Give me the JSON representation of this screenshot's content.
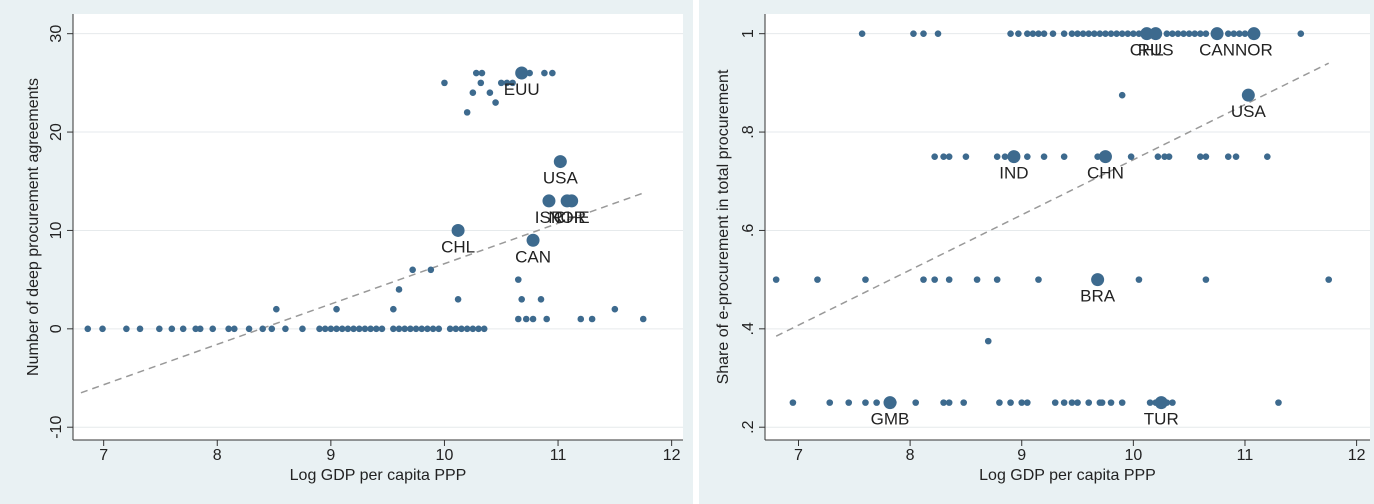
{
  "chart_data": [
    {
      "type": "scatter",
      "xlabel": "Log GDP per capita PPP",
      "ylabel": "Number of deep procurement agreements",
      "xlim": [
        6.73,
        12.1
      ],
      "ylim": [
        -11.3,
        32
      ],
      "xticks": [
        7,
        8,
        9,
        10,
        11,
        12
      ],
      "yticks": [
        -10,
        0,
        10,
        20,
        30
      ],
      "grid": true,
      "color": "#3d6a8e",
      "label_color": "#6b1d5c",
      "points": {
        "x": [
          6.86,
          6.99,
          7.2,
          7.32,
          7.49,
          7.6,
          7.7,
          7.81,
          7.85,
          7.96,
          8.1,
          8.15,
          8.28,
          8.4,
          8.48,
          8.6,
          8.75,
          8.9,
          8.95,
          9.0,
          9.05,
          9.1,
          9.15,
          9.2,
          9.25,
          9.3,
          9.35,
          9.4,
          9.45,
          9.55,
          9.6,
          9.65,
          9.7,
          9.75,
          9.8,
          9.85,
          9.9,
          9.95,
          10.05,
          10.1,
          10.15,
          10.2,
          10.25,
          10.3,
          10.35,
          8.52,
          9.05,
          9.55,
          9.6,
          9.72,
          9.88,
          10.12,
          10.0,
          10.2,
          10.25,
          10.28,
          10.33,
          10.32,
          10.4,
          10.45,
          10.5,
          10.55,
          10.6,
          10.75,
          10.88,
          10.95,
          10.65,
          10.68,
          10.65,
          10.72,
          10.78,
          10.85,
          10.9,
          11.2,
          11.3,
          11.5,
          11.75
        ],
        "y": [
          0,
          0,
          0,
          0,
          0,
          0,
          0,
          0,
          0,
          0,
          0,
          0,
          0,
          0,
          0,
          0,
          0,
          0,
          0,
          0,
          0,
          0,
          0,
          0,
          0,
          0,
          0,
          0,
          0,
          0,
          0,
          0,
          0,
          0,
          0,
          0,
          0,
          0,
          0,
          0,
          0,
          0,
          0,
          0,
          0,
          2,
          2,
          2,
          4,
          6,
          6,
          3,
          25,
          22,
          24,
          26,
          26,
          25,
          24,
          23,
          25,
          25,
          25,
          26,
          26,
          26,
          5,
          3,
          1,
          1,
          1,
          3,
          1,
          1,
          1,
          2,
          1
        ]
      },
      "labeled_points": {
        "x": [
          10.68,
          11.02,
          10.12,
          10.78,
          10.92,
          11.08,
          11.12
        ],
        "y": [
          26,
          17,
          10,
          9,
          13,
          13,
          13
        ],
        "labels": [
          "EUU",
          "USA",
          "CHL",
          "CAN",
          "ISR",
          "NOR",
          "CHE"
        ]
      },
      "fit_line": {
        "x": [
          6.8,
          11.75
        ],
        "y": [
          -6.5,
          13.8
        ]
      }
    },
    {
      "type": "scatter",
      "xlabel": "Log GDP per capita PPP",
      "ylabel": "Share of e-procurement in total procurement",
      "xlim": [
        6.7,
        12.12
      ],
      "ylim": [
        0.174,
        1.04
      ],
      "xticks": [
        7,
        8,
        9,
        10,
        11,
        12
      ],
      "yticks": [
        {
          "value": 0.2,
          "label": ".2"
        },
        {
          "value": 0.4,
          "label": ".4"
        },
        {
          "value": 0.6,
          "label": ".6"
        },
        {
          "value": 0.8,
          "label": ".8"
        },
        1
      ],
      "grid": true,
      "color": "#3d6a8e",
      "label_color": "#6b1d5c",
      "points": {
        "x": [
          7.57,
          8.03,
          8.12,
          8.25,
          8.9,
          8.97,
          9.05,
          9.1,
          9.15,
          9.2,
          9.28,
          9.38,
          9.45,
          9.5,
          9.55,
          9.6,
          9.65,
          9.7,
          9.75,
          9.8,
          9.85,
          9.9,
          9.95,
          10.0,
          10.05,
          10.3,
          10.35,
          10.4,
          10.45,
          10.5,
          10.55,
          10.6,
          10.65,
          10.85,
          10.9,
          10.95,
          11.0,
          11.5,
          9.9,
          8.22,
          8.3,
          8.35,
          8.5,
          8.78,
          8.85,
          9.05,
          9.2,
          9.38,
          9.68,
          9.98,
          10.22,
          10.28,
          10.32,
          10.6,
          10.65,
          10.85,
          10.92,
          11.2,
          6.8,
          7.17,
          7.6,
          8.12,
          8.22,
          8.35,
          8.6,
          8.78,
          9.15,
          10.05,
          10.65,
          11.75,
          8.7,
          6.95,
          7.28,
          7.45,
          7.6,
          7.7,
          7.85,
          8.05,
          8.3,
          8.35,
          8.48,
          8.8,
          8.9,
          9.0,
          9.05,
          9.3,
          9.38,
          9.45,
          9.5,
          9.6,
          9.7,
          9.72,
          9.8,
          9.9,
          10.15,
          10.2,
          10.3,
          10.35,
          11.3
        ],
        "y": [
          1,
          1,
          1,
          1,
          1,
          1,
          1,
          1,
          1,
          1,
          1,
          1,
          1,
          1,
          1,
          1,
          1,
          1,
          1,
          1,
          1,
          1,
          1,
          1,
          1,
          1,
          1,
          1,
          1,
          1,
          1,
          1,
          1,
          1,
          1,
          1,
          1,
          1,
          0.875,
          0.75,
          0.75,
          0.75,
          0.75,
          0.75,
          0.75,
          0.75,
          0.75,
          0.75,
          0.75,
          0.75,
          0.75,
          0.75,
          0.75,
          0.75,
          0.75,
          0.75,
          0.75,
          0.75,
          0.5,
          0.5,
          0.5,
          0.5,
          0.5,
          0.5,
          0.5,
          0.5,
          0.5,
          0.5,
          0.5,
          0.5,
          0.375,
          0.25,
          0.25,
          0.25,
          0.25,
          0.25,
          0.25,
          0.25,
          0.25,
          0.25,
          0.25,
          0.25,
          0.25,
          0.25,
          0.25,
          0.25,
          0.25,
          0.25,
          0.25,
          0.25,
          0.25,
          0.25,
          0.25,
          0.25,
          0.25,
          0.25,
          0.25,
          0.25,
          0.25
        ]
      },
      "labeled_points": {
        "x": [
          10.12,
          10.2,
          10.75,
          11.08,
          11.03,
          8.93,
          9.75,
          9.68,
          7.82,
          10.25
        ],
        "y": [
          1,
          1,
          1,
          1,
          0.875,
          0.75,
          0.75,
          0.5,
          0.25,
          0.25
        ],
        "labels": [
          "CHL",
          "RUS",
          "CAN",
          "NOR",
          "USA",
          "IND",
          "CHN",
          "BRA",
          "GMB",
          "TUR"
        ]
      },
      "fit_line": {
        "x": [
          6.8,
          11.75
        ],
        "y": [
          0.385,
          0.94
        ]
      }
    }
  ]
}
